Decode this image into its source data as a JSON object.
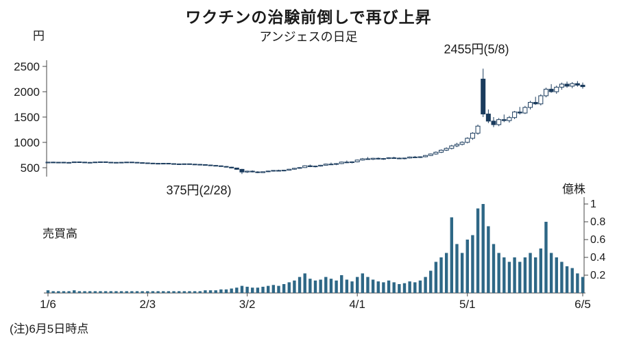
{
  "header": {
    "title": "ワクチンの治験前倒しで再び上昇",
    "subtitle": "アンジェスの日足"
  },
  "labels": {
    "price_unit": "円",
    "volume_unit": "億株",
    "volume_title": "売買高",
    "note": "(注)6月5日時点"
  },
  "annotations": {
    "peak": "2455円(5/8)",
    "trough": "375円(2/28)"
  },
  "colors": {
    "candle": "#1a3b5d",
    "candle_up_fill": "#ffffff",
    "volume": "#2e6786",
    "axis": "#444444"
  },
  "chart_data": {
    "type": "candlestick+volume",
    "title": "ワクチンの治験前倒しで再び上昇",
    "subtitle": "アンジェスの日足",
    "price_axis": {
      "unit": "円",
      "ticks": [
        500,
        1000,
        1500,
        2000,
        2500
      ],
      "range": [
        300,
        2600
      ]
    },
    "volume_axis": {
      "unit": "億株",
      "ticks": [
        0.2,
        0.4,
        0.6,
        0.8,
        1
      ],
      "range": [
        0,
        1.05
      ]
    },
    "x_ticks": [
      {
        "label": "1/6",
        "index": 0
      },
      {
        "label": "2/3",
        "index": 19
      },
      {
        "label": "3/2",
        "index": 38
      },
      {
        "label": "4/1",
        "index": 59
      },
      {
        "label": "5/1",
        "index": 80
      },
      {
        "label": "6/5",
        "index": 102
      }
    ],
    "peak": {
      "price": 2455,
      "date": "5/8",
      "index": 83
    },
    "trough": {
      "price": 375,
      "date": "2/28",
      "index": 37
    },
    "series_note": "candles = [open, high, low, close, volume(億株)]",
    "candles": [
      [
        595,
        615,
        588,
        610,
        0.03
      ],
      [
        610,
        618,
        600,
        605,
        0.02
      ],
      [
        605,
        615,
        598,
        608,
        0.02
      ],
      [
        608,
        616,
        600,
        604,
        0.02
      ],
      [
        604,
        612,
        596,
        600,
        0.02
      ],
      [
        600,
        620,
        598,
        615,
        0.03
      ],
      [
        615,
        622,
        605,
        610,
        0.02
      ],
      [
        610,
        616,
        600,
        605,
        0.02
      ],
      [
        605,
        612,
        598,
        602,
        0.02
      ],
      [
        602,
        615,
        600,
        612,
        0.02
      ],
      [
        612,
        620,
        605,
        616,
        0.02
      ],
      [
        616,
        620,
        606,
        608,
        0.02
      ],
      [
        608,
        614,
        600,
        605,
        0.02
      ],
      [
        605,
        610,
        595,
        600,
        0.02
      ],
      [
        600,
        612,
        597,
        607,
        0.02
      ],
      [
        607,
        615,
        600,
        611,
        0.02
      ],
      [
        611,
        615,
        602,
        606,
        0.02
      ],
      [
        606,
        610,
        596,
        600,
        0.02
      ],
      [
        600,
        606,
        590,
        595,
        0.02
      ],
      [
        595,
        601,
        585,
        590,
        0.02
      ],
      [
        590,
        596,
        582,
        586,
        0.02
      ],
      [
        586,
        592,
        578,
        582,
        0.02
      ],
      [
        582,
        590,
        576,
        587,
        0.02
      ],
      [
        587,
        591,
        575,
        580,
        0.02
      ],
      [
        580,
        585,
        570,
        575,
        0.02
      ],
      [
        575,
        582,
        568,
        572,
        0.02
      ],
      [
        572,
        580,
        566,
        577,
        0.02
      ],
      [
        577,
        581,
        565,
        570,
        0.02
      ],
      [
        570,
        576,
        562,
        566,
        0.02
      ],
      [
        566,
        572,
        556,
        561,
        0.02
      ],
      [
        561,
        568,
        548,
        553,
        0.03
      ],
      [
        553,
        560,
        540,
        545,
        0.03
      ],
      [
        545,
        552,
        530,
        537,
        0.03
      ],
      [
        537,
        544,
        518,
        525,
        0.04
      ],
      [
        525,
        532,
        504,
        511,
        0.04
      ],
      [
        511,
        518,
        486,
        494,
        0.05
      ],
      [
        494,
        500,
        458,
        468,
        0.06
      ],
      [
        468,
        476,
        375,
        415,
        0.08
      ],
      [
        415,
        442,
        398,
        432,
        0.07
      ],
      [
        432,
        446,
        408,
        417,
        0.06
      ],
      [
        417,
        430,
        392,
        403,
        0.06
      ],
      [
        403,
        428,
        396,
        421,
        0.07
      ],
      [
        421,
        441,
        413,
        434,
        0.08
      ],
      [
        434,
        452,
        424,
        446,
        0.09
      ],
      [
        446,
        460,
        428,
        437,
        0.08
      ],
      [
        437,
        456,
        430,
        451,
        0.1
      ],
      [
        451,
        478,
        444,
        470,
        0.12
      ],
      [
        470,
        496,
        461,
        488,
        0.14
      ],
      [
        488,
        512,
        478,
        503,
        0.18
      ],
      [
        503,
        548,
        496,
        538,
        0.22
      ],
      [
        538,
        562,
        512,
        521,
        0.16
      ],
      [
        521,
        541,
        506,
        532,
        0.14
      ],
      [
        532,
        556,
        522,
        549,
        0.15
      ],
      [
        549,
        582,
        541,
        571,
        0.18
      ],
      [
        571,
        601,
        556,
        566,
        0.16
      ],
      [
        566,
        591,
        551,
        581,
        0.14
      ],
      [
        581,
        621,
        571,
        611,
        0.2
      ],
      [
        611,
        641,
        591,
        601,
        0.15
      ],
      [
        601,
        626,
        586,
        616,
        0.13
      ],
      [
        616,
        661,
        606,
        651,
        0.18
      ],
      [
        651,
        691,
        641,
        676,
        0.22
      ],
      [
        676,
        711,
        656,
        666,
        0.18
      ],
      [
        666,
        696,
        651,
        686,
        0.15
      ],
      [
        686,
        701,
        661,
        671,
        0.13
      ],
      [
        671,
        691,
        656,
        681,
        0.12
      ],
      [
        681,
        706,
        671,
        696,
        0.14
      ],
      [
        696,
        716,
        681,
        689,
        0.12
      ],
      [
        689,
        701,
        671,
        679,
        0.1
      ],
      [
        679,
        696,
        666,
        691,
        0.11
      ],
      [
        691,
        721,
        681,
        711,
        0.13
      ],
      [
        711,
        731,
        691,
        701,
        0.12
      ],
      [
        701,
        726,
        691,
        716,
        0.14
      ],
      [
        716,
        751,
        706,
        741,
        0.18
      ],
      [
        741,
        781,
        731,
        771,
        0.25
      ],
      [
        771,
        821,
        756,
        806,
        0.35
      ],
      [
        806,
        861,
        791,
        846,
        0.4
      ],
      [
        846,
        901,
        831,
        881,
        0.45
      ],
      [
        881,
        951,
        861,
        931,
        0.85
      ],
      [
        931,
        991,
        906,
        961,
        0.55
      ],
      [
        961,
        1021,
        941,
        1001,
        0.45
      ],
      [
        1001,
        1101,
        981,
        1081,
        0.6
      ],
      [
        1081,
        1201,
        1051,
        1181,
        0.65
      ],
      [
        1181,
        1351,
        1151,
        1321,
        0.95
      ],
      [
        2250,
        2455,
        1500,
        1560,
        1.0
      ],
      [
        1560,
        1650,
        1380,
        1420,
        0.75
      ],
      [
        1420,
        1500,
        1300,
        1350,
        0.55
      ],
      [
        1350,
        1480,
        1320,
        1450,
        0.45
      ],
      [
        1450,
        1550,
        1400,
        1430,
        0.4
      ],
      [
        1430,
        1520,
        1390,
        1490,
        0.35
      ],
      [
        1490,
        1620,
        1460,
        1600,
        0.4
      ],
      [
        1600,
        1700,
        1550,
        1580,
        0.35
      ],
      [
        1580,
        1720,
        1560,
        1690,
        0.4
      ],
      [
        1690,
        1820,
        1650,
        1790,
        0.45
      ],
      [
        1790,
        1900,
        1740,
        1760,
        0.4
      ],
      [
        1760,
        1950,
        1730,
        1920,
        0.5
      ],
      [
        1920,
        2080,
        1890,
        2050,
        0.8
      ],
      [
        2050,
        2150,
        1980,
        2000,
        0.45
      ],
      [
        2000,
        2120,
        1960,
        2090,
        0.4
      ],
      [
        2090,
        2180,
        2040,
        2150,
        0.35
      ],
      [
        2150,
        2200,
        2080,
        2110,
        0.3
      ],
      [
        2110,
        2190,
        2070,
        2160,
        0.28
      ],
      [
        2160,
        2210,
        2100,
        2130,
        0.22
      ],
      [
        2130,
        2180,
        2060,
        2100,
        0.18
      ]
    ]
  }
}
